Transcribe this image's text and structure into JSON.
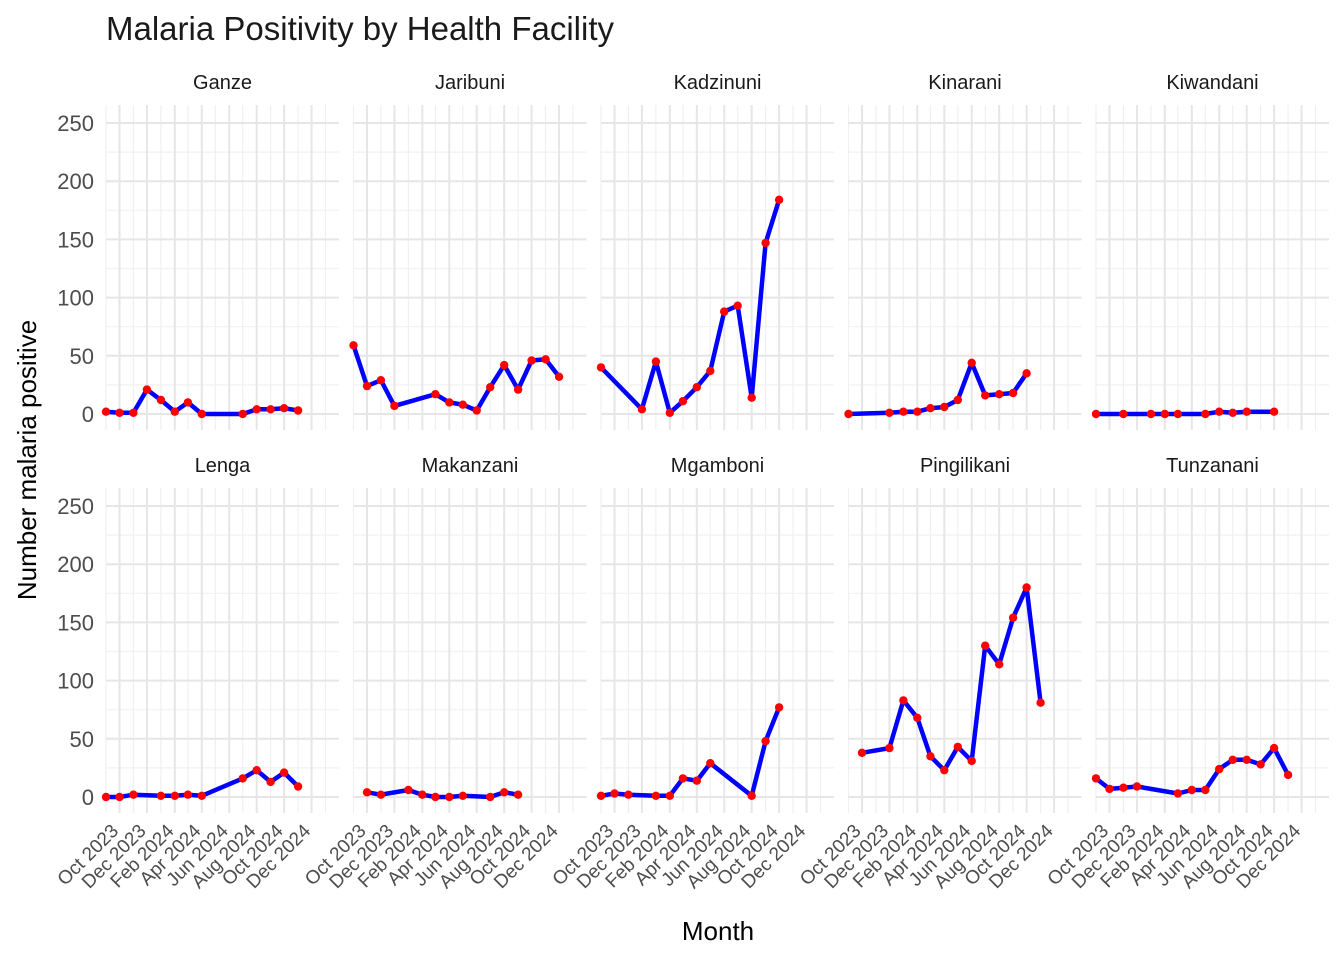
{
  "chart_data": {
    "type": "line",
    "title": "Malaria Positivity by Health Facility",
    "xlabel": "Month",
    "ylabel": "Number malaria positive",
    "ylim": [
      0,
      250
    ],
    "y_ticks": [
      0,
      50,
      100,
      150,
      200,
      250
    ],
    "x_ticks": [
      "Oct 2023",
      "Dec 2023",
      "Feb 2024",
      "Apr 2024",
      "Jun 2024",
      "Aug 2024",
      "Oct 2024",
      "Dec 2024"
    ],
    "x_range": [
      "2023-09-01",
      "2025-01-31"
    ],
    "grid": true,
    "line_color": "#0000FF",
    "point_color": "#FF0000",
    "facets": [
      {
        "name": "Ganze",
        "points": [
          [
            "2023-09-01",
            2
          ],
          [
            "2023-10-01",
            1
          ],
          [
            "2023-11-01",
            1
          ],
          [
            "2023-12-01",
            21
          ],
          [
            "2024-01-01",
            12
          ],
          [
            "2024-02-01",
            2
          ],
          [
            "2024-03-01",
            10
          ],
          [
            "2024-04-01",
            0
          ],
          [
            "2024-07-01",
            0
          ],
          [
            "2024-08-01",
            4
          ],
          [
            "2024-09-01",
            4
          ],
          [
            "2024-10-01",
            5
          ],
          [
            "2024-11-01",
            3
          ]
        ]
      },
      {
        "name": "Jaribuni",
        "points": [
          [
            "2023-09-01",
            59
          ],
          [
            "2023-10-01",
            24
          ],
          [
            "2023-11-01",
            29
          ],
          [
            "2023-12-01",
            7
          ],
          [
            "2024-03-01",
            17
          ],
          [
            "2024-04-01",
            10
          ],
          [
            "2024-05-01",
            8
          ],
          [
            "2024-06-01",
            3
          ],
          [
            "2024-07-01",
            23
          ],
          [
            "2024-08-01",
            42
          ],
          [
            "2024-09-01",
            21
          ],
          [
            "2024-10-01",
            46
          ],
          [
            "2024-11-01",
            47
          ],
          [
            "2024-12-01",
            32
          ]
        ]
      },
      {
        "name": "Kadzinuni",
        "points": [
          [
            "2023-09-01",
            40
          ],
          [
            "2023-12-01",
            4
          ],
          [
            "2024-01-01",
            45
          ],
          [
            "2024-02-01",
            1
          ],
          [
            "2024-03-01",
            11
          ],
          [
            "2024-04-01",
            23
          ],
          [
            "2024-05-01",
            37
          ],
          [
            "2024-06-01",
            88
          ],
          [
            "2024-07-01",
            93
          ],
          [
            "2024-08-01",
            14
          ],
          [
            "2024-09-01",
            147
          ],
          [
            "2024-10-01",
            184
          ]
        ]
      },
      {
        "name": "Kinarani",
        "points": [
          [
            "2023-09-01",
            0
          ],
          [
            "2023-12-01",
            1
          ],
          [
            "2024-01-01",
            2
          ],
          [
            "2024-02-01",
            2
          ],
          [
            "2024-03-01",
            5
          ],
          [
            "2024-04-01",
            6
          ],
          [
            "2024-05-01",
            12
          ],
          [
            "2024-06-01",
            44
          ],
          [
            "2024-07-01",
            16
          ],
          [
            "2024-08-01",
            17
          ],
          [
            "2024-09-01",
            18
          ],
          [
            "2024-10-01",
            35
          ]
        ]
      },
      {
        "name": "Kiwandani",
        "points": [
          [
            "2023-09-01",
            0
          ],
          [
            "2023-11-01",
            0
          ],
          [
            "2024-01-01",
            0
          ],
          [
            "2024-02-01",
            0
          ],
          [
            "2024-03-01",
            0
          ],
          [
            "2024-05-01",
            0
          ],
          [
            "2024-06-01",
            2
          ],
          [
            "2024-07-01",
            1
          ],
          [
            "2024-08-01",
            2
          ],
          [
            "2024-10-01",
            2
          ]
        ]
      },
      {
        "name": "Lenga",
        "points": [
          [
            "2023-09-01",
            0
          ],
          [
            "2023-10-01",
            0
          ],
          [
            "2023-11-01",
            2
          ],
          [
            "2024-01-01",
            1
          ],
          [
            "2024-02-01",
            1
          ],
          [
            "2024-03-01",
            2
          ],
          [
            "2024-04-01",
            1
          ],
          [
            "2024-07-01",
            16
          ],
          [
            "2024-08-01",
            23
          ],
          [
            "2024-09-01",
            13
          ],
          [
            "2024-10-01",
            21
          ],
          [
            "2024-11-01",
            9
          ]
        ]
      },
      {
        "name": "Makanzani",
        "points": [
          [
            "2023-10-01",
            4
          ],
          [
            "2023-11-01",
            2
          ],
          [
            "2024-01-01",
            6
          ],
          [
            "2024-02-01",
            2
          ],
          [
            "2024-03-01",
            0
          ],
          [
            "2024-04-01",
            0
          ],
          [
            "2024-05-01",
            1
          ],
          [
            "2024-07-01",
            0
          ],
          [
            "2024-08-01",
            4
          ],
          [
            "2024-09-01",
            2
          ]
        ]
      },
      {
        "name": "Mgamboni",
        "points": [
          [
            "2023-09-01",
            1
          ],
          [
            "2023-10-01",
            3
          ],
          [
            "2023-11-01",
            2
          ],
          [
            "2024-01-01",
            1
          ],
          [
            "2024-02-01",
            1
          ],
          [
            "2024-03-01",
            16
          ],
          [
            "2024-04-01",
            14
          ],
          [
            "2024-05-01",
            29
          ],
          [
            "2024-08-01",
            1
          ],
          [
            "2024-09-01",
            48
          ],
          [
            "2024-10-01",
            77
          ]
        ]
      },
      {
        "name": "Pingilikani",
        "points": [
          [
            "2023-10-01",
            38
          ],
          [
            "2023-12-01",
            42
          ],
          [
            "2024-01-01",
            83
          ],
          [
            "2024-02-01",
            68
          ],
          [
            "2024-03-01",
            35
          ],
          [
            "2024-04-01",
            23
          ],
          [
            "2024-05-01",
            43
          ],
          [
            "2024-06-01",
            31
          ],
          [
            "2024-07-01",
            130
          ],
          [
            "2024-08-01",
            114
          ],
          [
            "2024-09-01",
            154
          ],
          [
            "2024-10-01",
            180
          ],
          [
            "2024-11-01",
            81
          ]
        ]
      },
      {
        "name": "Tunzanani",
        "points": [
          [
            "2023-09-01",
            16
          ],
          [
            "2023-10-01",
            7
          ],
          [
            "2023-11-01",
            8
          ],
          [
            "2023-12-01",
            9
          ],
          [
            "2024-03-01",
            3
          ],
          [
            "2024-04-01",
            6
          ],
          [
            "2024-05-01",
            6
          ],
          [
            "2024-06-01",
            24
          ],
          [
            "2024-07-01",
            32
          ],
          [
            "2024-08-01",
            32
          ],
          [
            "2024-09-01",
            28
          ],
          [
            "2024-10-01",
            42
          ],
          [
            "2024-11-01",
            19
          ]
        ]
      }
    ]
  }
}
